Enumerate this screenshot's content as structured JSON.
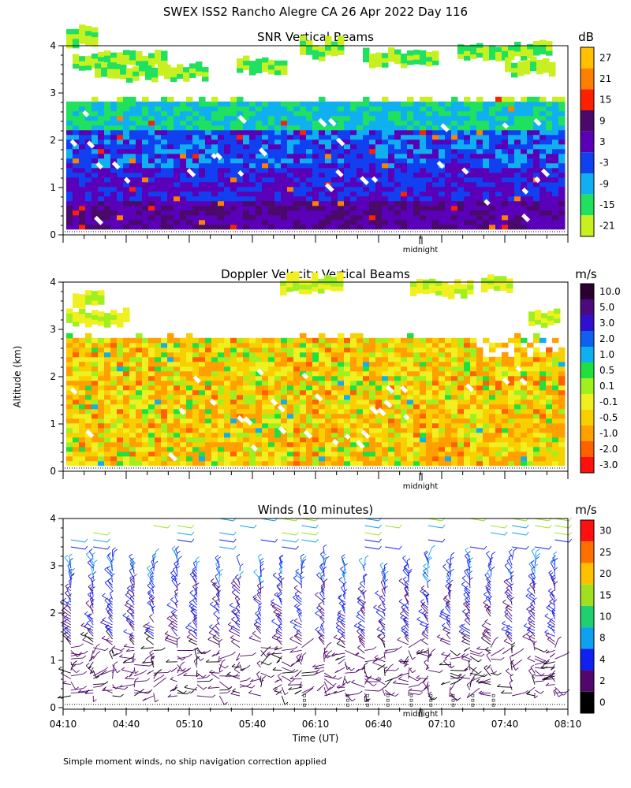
{
  "header": {
    "title": "SWEX ISS2 Rancho Alegre CA  26 Apr 2022 Day 116"
  },
  "axis": {
    "ylabel": "Altitude (km)",
    "xlabel": "Time (UT)",
    "midnight": "midnight"
  },
  "footer": {
    "note": "Simple moment winds, no ship navigation correction applied"
  },
  "chart_data": [
    {
      "type": "heatmap",
      "title": "SNR Vertical Beams",
      "unit": "dB",
      "ylabel": "Altitude (km)",
      "y_ticks": [
        "0",
        "1",
        "2",
        "3",
        "4"
      ],
      "ylim": [
        0,
        4
      ],
      "colorbar_labels": [
        "27",
        "21",
        "15",
        "9",
        "3",
        "-3",
        "-9",
        "-15",
        "-21"
      ],
      "colorbar_colors": [
        "#ffc000",
        "#ff8000",
        "#ff2000",
        "#4a0a6a",
        "#5a00b8",
        "#1040f0",
        "#10b0f0",
        "#20e060",
        "#c8f020"
      ]
    },
    {
      "type": "heatmap",
      "title": "Doppler Velocity Vertical Beams",
      "unit": "m/s",
      "ylabel": "Altitude (km)",
      "y_ticks": [
        "0",
        "1",
        "2",
        "3",
        "4"
      ],
      "ylim": [
        0,
        4
      ],
      "colorbar_labels": [
        "10.0",
        "5.0",
        "3.0",
        "2.0",
        "1.0",
        "0.5",
        "0.1",
        "-0.1",
        "-0.5",
        "-1.0",
        "-2.0",
        "-3.0"
      ],
      "colorbar_colors": [
        "#2a0030",
        "#4a0a80",
        "#3010d0",
        "#1060f0",
        "#10b0f0",
        "#20e040",
        "#a0f020",
        "#f0f020",
        "#f8d000",
        "#ffa000",
        "#ff6000",
        "#ff1010"
      ]
    },
    {
      "type": "wind_barbs",
      "title": "Winds (10 minutes)",
      "unit": "m/s",
      "ylabel": "Altitude (km)",
      "xlabel": "Time (UT)",
      "y_ticks": [
        "0",
        "1",
        "2",
        "3",
        "4"
      ],
      "ylim": [
        0,
        4
      ],
      "x_ticks": [
        "04:10",
        "04:40",
        "05:10",
        "05:40",
        "06:10",
        "06:40",
        "07:10",
        "07:40",
        "08:10"
      ],
      "colorbar_labels": [
        "30",
        "25",
        "20",
        "15",
        "10",
        "8",
        "4",
        "2",
        "0"
      ],
      "colorbar_colors": [
        "#ff1010",
        "#ff7000",
        "#ffc000",
        "#a0e020",
        "#20d070",
        "#10a0f0",
        "#1020f0",
        "#50086a",
        "#000000"
      ]
    }
  ]
}
